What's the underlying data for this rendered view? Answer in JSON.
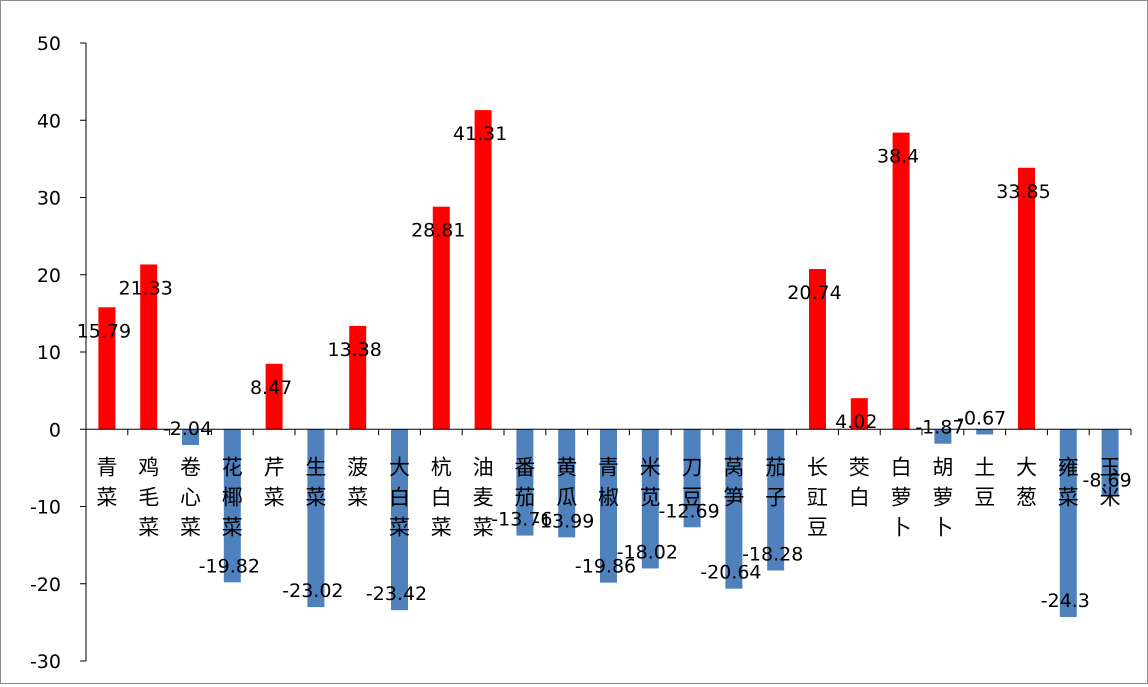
{
  "chart_data": {
    "type": "bar",
    "title": "",
    "xlabel": "",
    "ylabel": "",
    "ylim": [
      -30,
      50
    ],
    "yticks": [
      "50",
      "40",
      "30",
      "20",
      "10",
      "0",
      "-10",
      "-20",
      "-30"
    ],
    "grid": false,
    "legend": "none",
    "categories": [
      "青菜",
      "鸡毛菜",
      "卷心菜",
      "花椰菜",
      "芹菜",
      "生菜",
      "菠菜",
      "大白菜",
      "杭白菜",
      "油麦菜",
      "番茄",
      "黄瓜",
      "青椒",
      "米苋",
      "刀豆",
      "莴笋",
      "茄子",
      "长豇豆",
      "茭白",
      "白萝卜",
      "胡萝卜",
      "土豆",
      "大葱",
      "雍菜",
      "玉米"
    ],
    "values": [
      15.79,
      21.33,
      -2.04,
      -19.82,
      8.47,
      -23.02,
      13.38,
      -23.42,
      28.81,
      41.31,
      -13.76,
      -13.99,
      -19.86,
      -18.02,
      -12.69,
      -20.64,
      -18.28,
      20.74,
      4.02,
      38.4,
      -1.87,
      -0.67,
      33.85,
      -24.3,
      -8.69
    ],
    "labels": [
      "15.79",
      "21.33",
      "-2.04",
      "-19.82",
      "8.47",
      "-23.02",
      "13.38",
      "-23.42",
      "28.81",
      "41.31",
      "-13.76",
      "-13.99",
      "-19.86",
      "-18.02",
      "-12.69",
      "-20.64",
      "-18.28",
      "20.74",
      "4.02",
      "38.4",
      "-1.87",
      "-0.67",
      "33.85",
      "-24.3",
      "-8.69"
    ],
    "colors": {
      "positive": "#ff0000",
      "negative": "#4f81bd",
      "axis": "#000000",
      "text": "#000000"
    }
  }
}
